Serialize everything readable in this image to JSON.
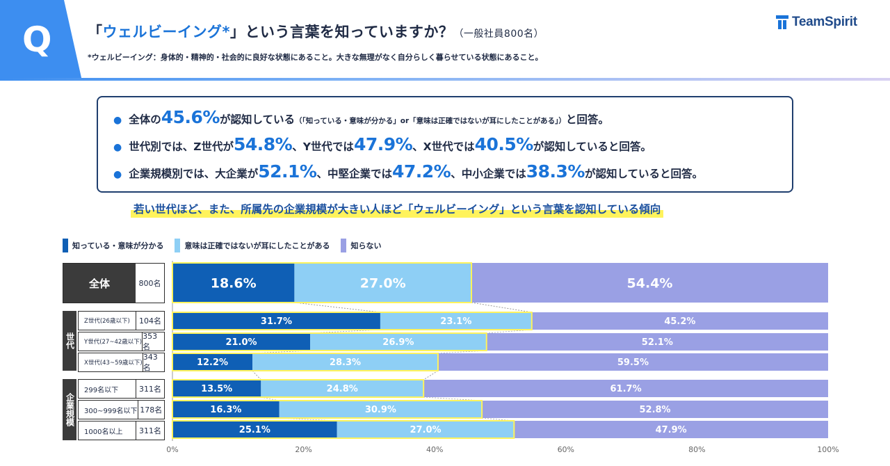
{
  "header": {
    "q_letter": "Q",
    "title_open": "「",
    "title_highlight": "ウェルビーイング*",
    "title_close": "」という言葉を知っていますか？",
    "title_sub": "（一般社員800名）",
    "note": "*ウェルビーイング：身体的・精神的・社会的に良好な状態にあること。大きな無理がなく自分らしく暮らせている状態にあること。",
    "logo_text": "TeamSpirit"
  },
  "summary": {
    "line1": {
      "a": "全体の",
      "v1": "45.6%",
      "b": "が認知している",
      "small": "（「知っている・意味が分かる」or「意味は正確ではないが耳にしたことがある」）",
      "c": "と回答。"
    },
    "line2": {
      "a": "世代別では、Z世代が",
      "v1": "54.8%",
      "b": "、Y世代では",
      "v2": "47.9%",
      "c": "、X世代では",
      "v3": "40.5%",
      "d": "が認知していると回答。"
    },
    "line3": {
      "a": "企業規模別では、大企業が",
      "v1": "52.1%",
      "b": "、中堅企業では",
      "v2": "47.2%",
      "c": "、中小企業では",
      "v3": "38.3%",
      "d": "が認知していると回答。"
    },
    "bullet": "●"
  },
  "conclusion": "若い世代ほど、また、所属先の企業規模が大きい人ほど「ウェルビーイング」という言葉を認知している傾向",
  "labels": {
    "total_name": "全体",
    "total_n": "800名",
    "group_generation": "世代",
    "group_company": "企業規模",
    "rows": [
      {
        "name": "Z世代(26歳以下)",
        "n": "104名"
      },
      {
        "name": "Y世代(27~42歳以下)",
        "n": "353名"
      },
      {
        "name": "X世代(43~59歳以下)",
        "n": "343名"
      },
      {
        "name": "299名以下",
        "n": "311名"
      },
      {
        "name": "300~999名以下",
        "n": "178名"
      },
      {
        "name": "1000名以上",
        "n": "311名"
      }
    ]
  },
  "colors": {
    "s1": "#0f5fb5",
    "s2": "#8ecff5",
    "s3": "#9aa0e4",
    "highlight": "#fff35c",
    "accent": "#1a73d8"
  },
  "chart_data": {
    "type": "bar",
    "orientation": "horizontal",
    "stacked": true,
    "legend_position": "top-left",
    "xlim": [
      0,
      100
    ],
    "x_ticks": [
      "0%",
      "20%",
      "40%",
      "60%",
      "80%",
      "100%"
    ],
    "categories": [
      "全体",
      "Z世代(26歳以下)",
      "Y世代(27~42歳以下)",
      "X世代(43~59歳以下)",
      "299名以下",
      "300~999名以下",
      "1000名以上"
    ],
    "series": [
      {
        "name": "知っている・意味が分かる",
        "values": [
          18.6,
          31.7,
          21.0,
          12.2,
          13.5,
          16.3,
          25.1
        ]
      },
      {
        "name": "意味は正確ではないが耳にしたことがある",
        "values": [
          27.0,
          23.1,
          26.9,
          28.3,
          24.8,
          30.9,
          27.0
        ]
      },
      {
        "name": "知らない",
        "values": [
          54.4,
          45.2,
          52.1,
          59.5,
          61.7,
          52.8,
          47.9
        ]
      }
    ]
  }
}
